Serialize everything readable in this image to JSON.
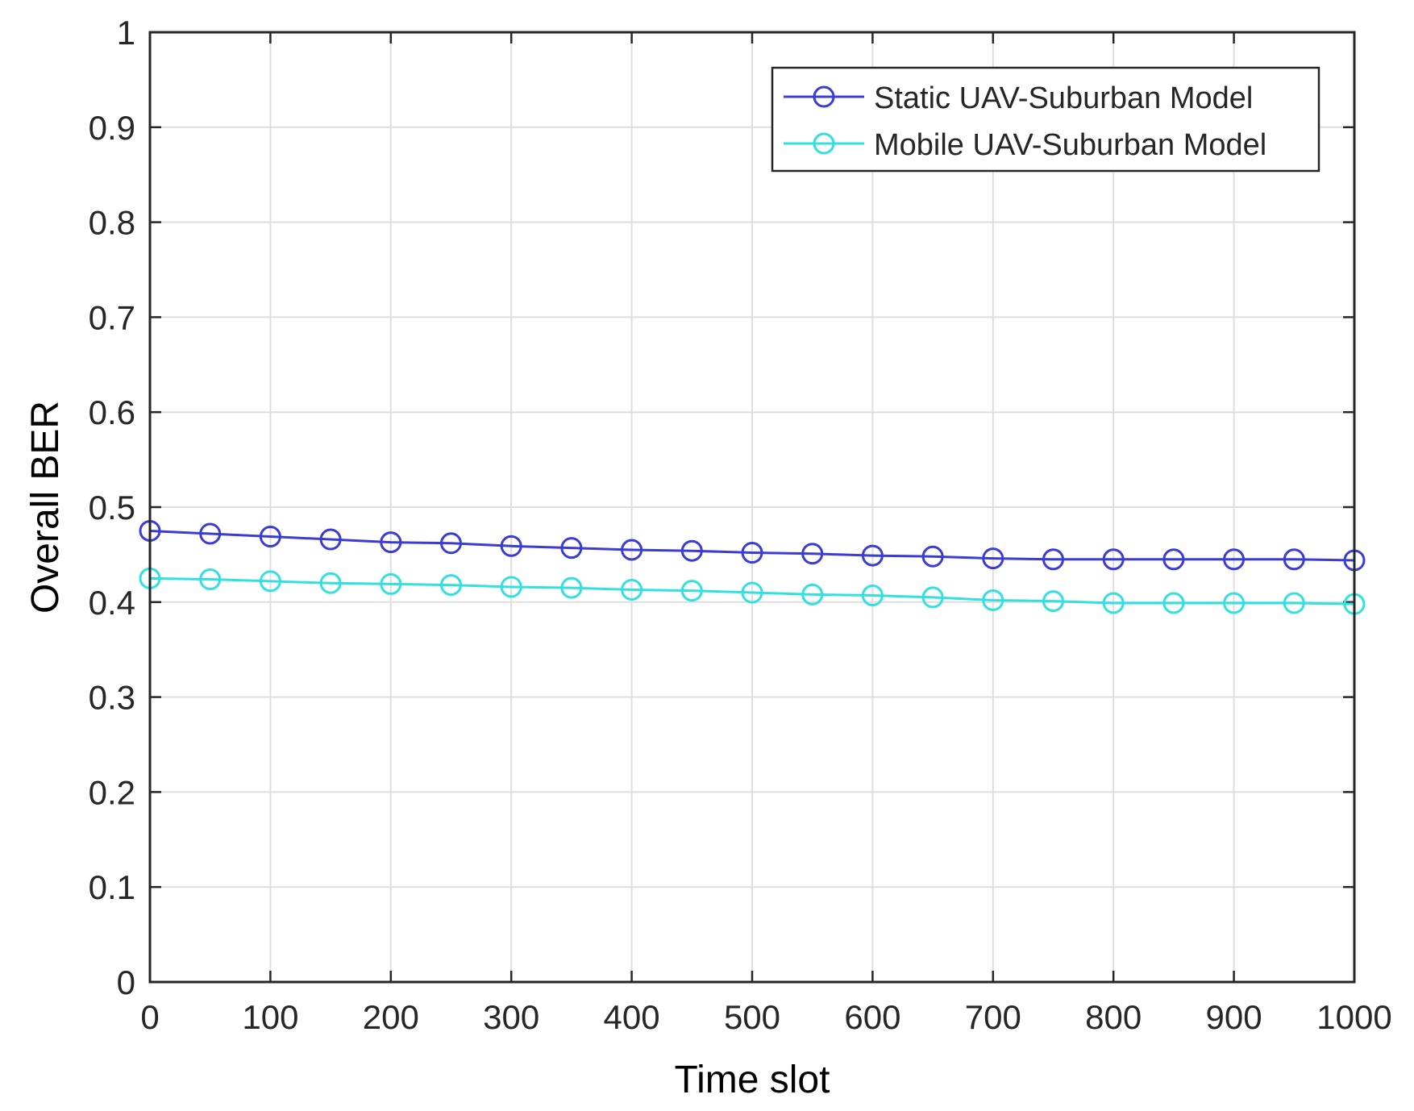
{
  "chart_data": {
    "type": "line",
    "title": "",
    "xlabel": "Time slot",
    "ylabel": "Overall BER",
    "xlim": [
      0,
      1000
    ],
    "ylim": [
      0,
      1
    ],
    "grid": true,
    "legend_position": "top-right",
    "x_ticks": [
      "0",
      "100",
      "200",
      "300",
      "400",
      "500",
      "600",
      "700",
      "800",
      "900",
      "1000"
    ],
    "y_ticks": [
      "0",
      "0.1",
      "0.2",
      "0.3",
      "0.4",
      "0.5",
      "0.6",
      "0.7",
      "0.8",
      "0.9",
      "1"
    ],
    "x": [
      0,
      50,
      100,
      150,
      200,
      250,
      300,
      350,
      400,
      450,
      500,
      550,
      600,
      650,
      700,
      750,
      800,
      850,
      900,
      950,
      1000
    ],
    "series": [
      {
        "name": "Static UAV-Suburban Model",
        "color": "#3b3bd6",
        "marker": "circle",
        "values": [
          0.475,
          0.472,
          0.469,
          0.466,
          0.463,
          0.462,
          0.459,
          0.457,
          0.455,
          0.454,
          0.452,
          0.451,
          0.449,
          0.448,
          0.446,
          0.445,
          0.445,
          0.445,
          0.445,
          0.445,
          0.444
        ]
      },
      {
        "name": "Mobile UAV-Suburban Model",
        "color": "#33e0e0",
        "marker": "circle",
        "values": [
          0.425,
          0.424,
          0.422,
          0.42,
          0.419,
          0.418,
          0.416,
          0.415,
          0.413,
          0.412,
          0.41,
          0.408,
          0.407,
          0.405,
          0.402,
          0.401,
          0.399,
          0.399,
          0.399,
          0.399,
          0.398
        ]
      }
    ]
  }
}
